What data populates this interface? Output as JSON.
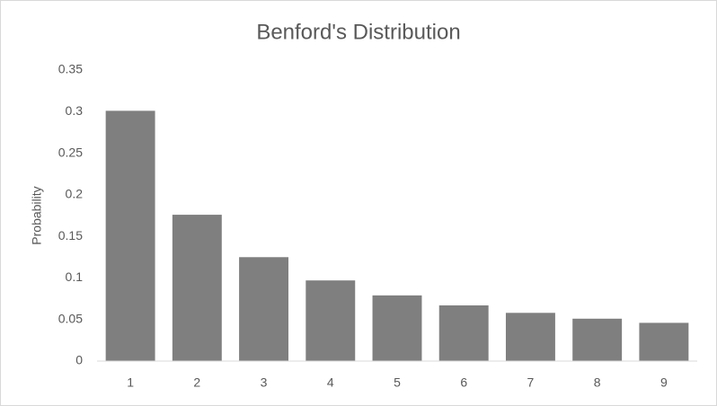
{
  "chart_data": {
    "type": "bar",
    "title": "Benford's Distribution",
    "y_label": "Probability",
    "categories": [
      "1",
      "2",
      "3",
      "4",
      "5",
      "6",
      "7",
      "8",
      "9"
    ],
    "values": [
      0.301,
      0.176,
      0.125,
      0.097,
      0.079,
      0.067,
      0.058,
      0.051,
      0.046
    ],
    "color": "#7f7f7f",
    "ylim": [
      0,
      0.35
    ],
    "yticks": [
      0,
      0.05,
      0.1,
      0.15,
      0.2,
      0.25,
      0.3,
      0.35
    ],
    "grid": false
  }
}
